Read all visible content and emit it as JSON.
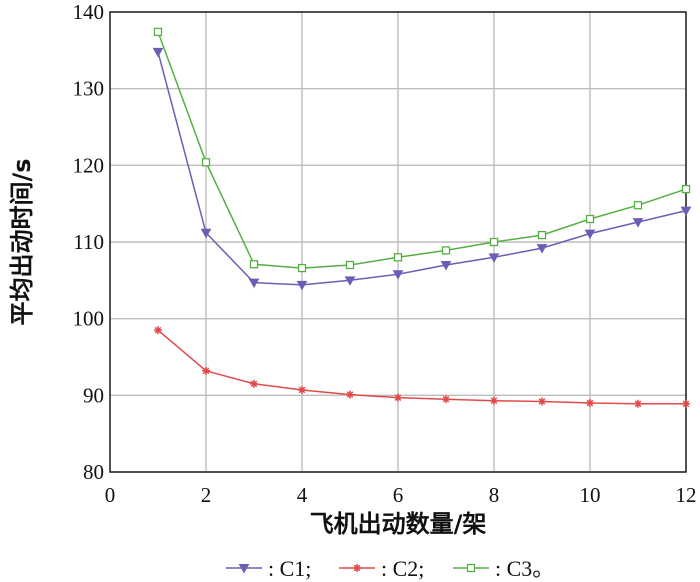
{
  "chart_data": {
    "type": "line",
    "xlabel": "飞机出动数量/架",
    "ylabel": "平均出动时间/s",
    "xlim": [
      0,
      12
    ],
    "ylim": [
      80,
      140
    ],
    "xticks": [
      0,
      2,
      4,
      6,
      8,
      10,
      12
    ],
    "yticks": [
      80,
      90,
      100,
      110,
      120,
      130,
      140
    ],
    "grid": true,
    "legend_position": "bottom",
    "x": [
      1,
      2,
      3,
      4,
      5,
      6,
      7,
      8,
      9,
      10,
      11,
      12
    ],
    "series": [
      {
        "name": "C1",
        "legend_label": ": C1;",
        "color": "#6b5fb5",
        "marker": "triangle-down",
        "values": [
          134.8,
          111.2,
          104.7,
          104.4,
          105.0,
          105.8,
          107.0,
          108.0,
          109.2,
          111.1,
          112.6,
          114.1
        ]
      },
      {
        "name": "C2",
        "legend_label": ": C2;",
        "color": "#e24a4a",
        "marker": "star",
        "values": [
          98.5,
          93.2,
          91.5,
          90.7,
          90.1,
          89.7,
          89.5,
          89.3,
          89.2,
          89.0,
          88.9,
          88.9
        ]
      },
      {
        "name": "C3",
        "legend_label": ": C3。",
        "color": "#55b043",
        "marker": "square",
        "values": [
          137.4,
          120.4,
          107.1,
          106.6,
          107.0,
          108.0,
          108.9,
          110.0,
          110.9,
          113.0,
          114.8,
          116.9
        ]
      }
    ]
  }
}
